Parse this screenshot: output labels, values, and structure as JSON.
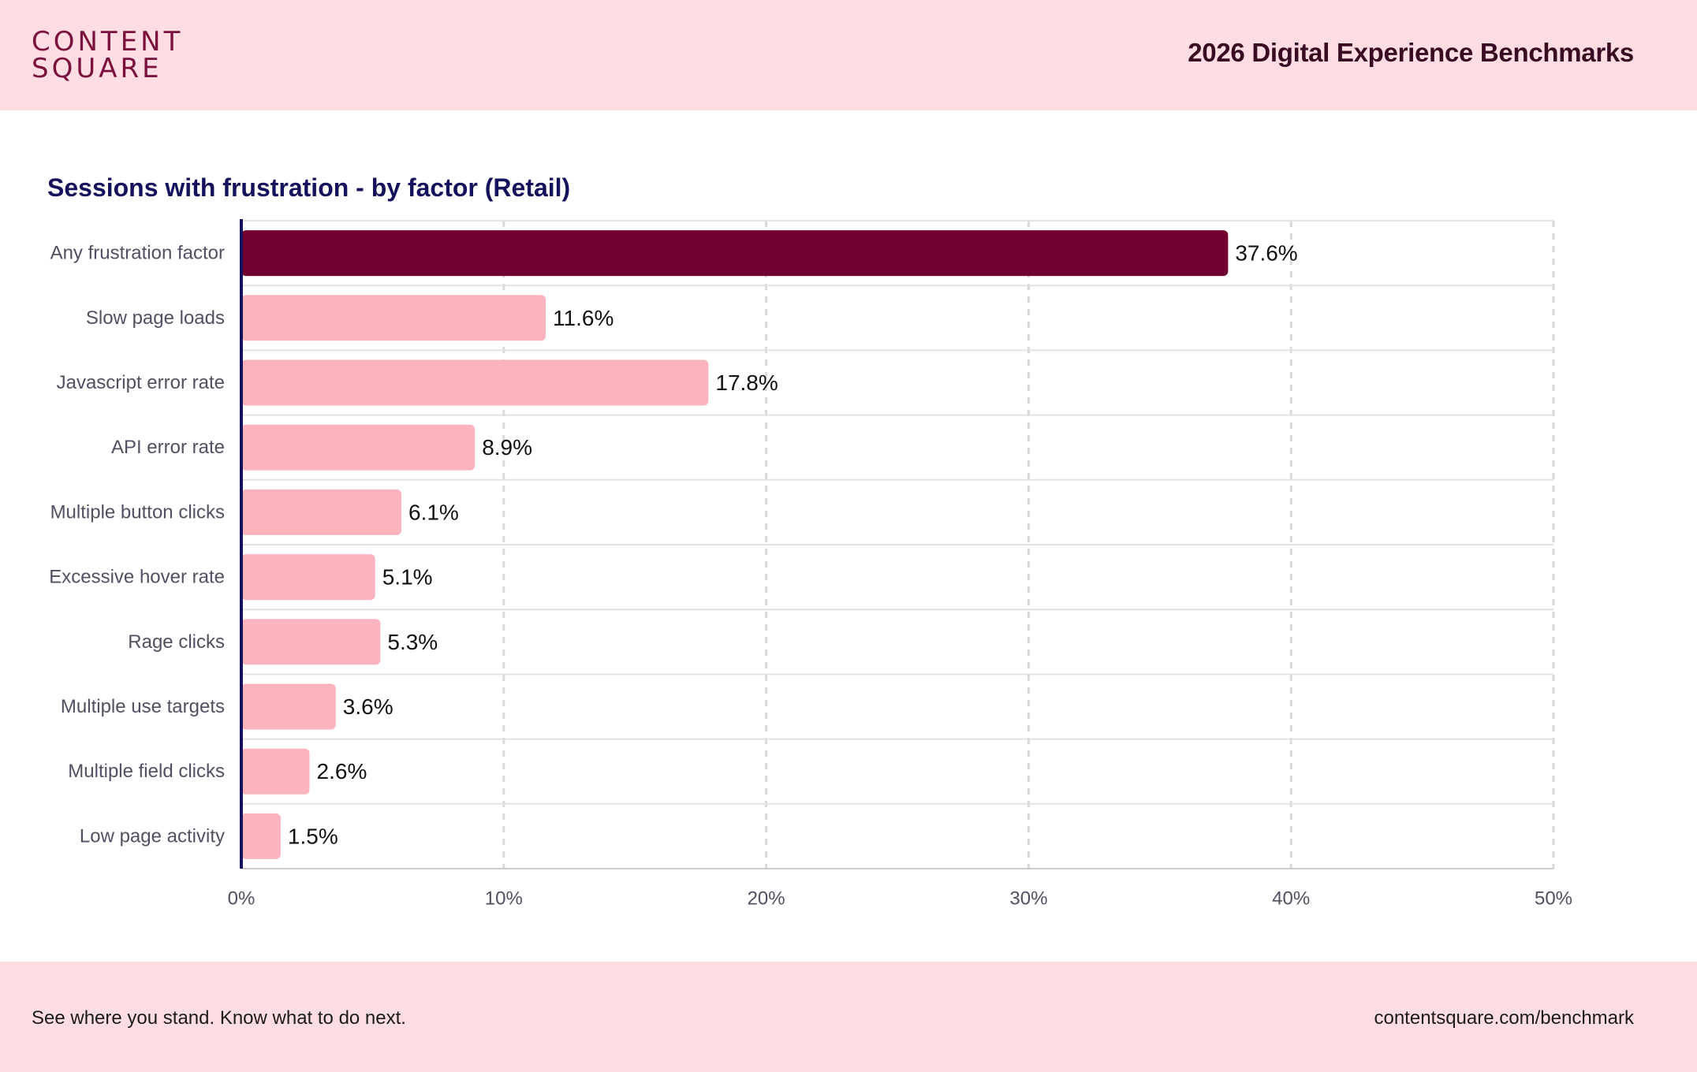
{
  "header": {
    "logo_line1": "CONTENT",
    "logo_line2": "SQUARE",
    "report_title": "2026 Digital Experience Benchmarks"
  },
  "footer": {
    "tagline": "See where you stand. Know what to do next.",
    "site": "contentsquare.com/benchmark"
  },
  "colors": {
    "highlight_bar": "#720031",
    "bar": "#FBB4BE",
    "header_bg": "#FFDDE3",
    "title": "#14125C",
    "axis_line": "#14125C"
  },
  "chart_data": {
    "type": "bar",
    "orientation": "horizontal",
    "title": "Sessions with frustration - by factor (Retail)",
    "categories": [
      "Any frustration factor",
      "Slow page loads",
      "Javascript error rate",
      "API error rate",
      "Multiple button clicks",
      "Excessive hover rate",
      "Rage clicks",
      "Multiple use targets",
      "Multiple field clicks",
      "Low page activity"
    ],
    "values": [
      37.6,
      11.6,
      17.8,
      8.9,
      6.1,
      5.1,
      5.3,
      3.6,
      2.6,
      1.5
    ],
    "value_labels": [
      "37.6%",
      "11.6%",
      "17.8%",
      "8.9%",
      "6.1%",
      "5.1%",
      "5.3%",
      "3.6%",
      "2.6%",
      "1.5%"
    ],
    "highlight_index": 0,
    "xlim": [
      0,
      50
    ],
    "xticks": [
      0,
      10,
      20,
      30,
      40,
      50
    ],
    "xtick_labels": [
      "0%",
      "10%",
      "20%",
      "30%",
      "40%",
      "50%"
    ],
    "xlabel": "",
    "ylabel": "",
    "grid": true
  }
}
